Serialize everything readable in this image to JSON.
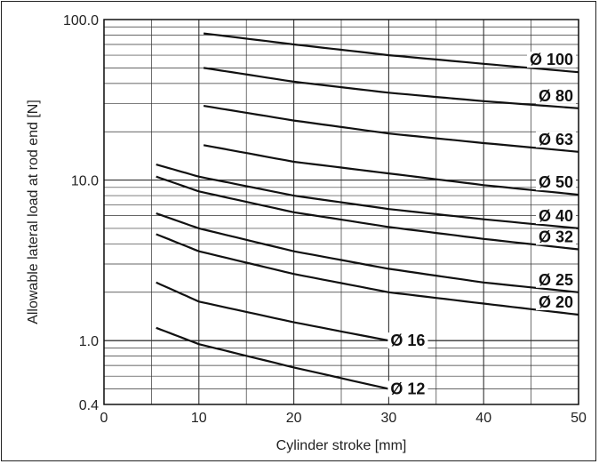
{
  "chart_data": {
    "type": "line",
    "title": "",
    "xlabel": "Cylinder stroke [mm]",
    "ylabel": "Allowable lateral load at rod end [N]",
    "x_scale": "linear",
    "y_scale": "log",
    "xlim": [
      0,
      50
    ],
    "ylim": [
      0.4,
      100
    ],
    "x_ticks": [
      0,
      10,
      20,
      30,
      40,
      50
    ],
    "x_tick_labels": [
      "0",
      "10",
      "20",
      "30",
      "40",
      "50"
    ],
    "y_ticks": [
      0.4,
      1.0,
      10.0,
      100.0
    ],
    "y_tick_labels": [
      "0.4",
      "1.0",
      "10.0",
      "100.0"
    ],
    "grid": true,
    "line_color": "#111111",
    "grid_color": "#333333",
    "series": [
      {
        "name": "Ø 100",
        "x": [
          10.5,
          20,
          30,
          40,
          50
        ],
        "y": [
          82,
          70,
          60,
          53,
          47
        ]
      },
      {
        "name": "Ø 80",
        "x": [
          10.5,
          20,
          30,
          40,
          50
        ],
        "y": [
          50,
          41,
          35,
          31,
          28
        ]
      },
      {
        "name": "Ø 63",
        "x": [
          10.5,
          20,
          30,
          40,
          50
        ],
        "y": [
          29,
          23.5,
          19.5,
          17,
          15
        ]
      },
      {
        "name": "Ø 50",
        "x": [
          10.5,
          20,
          30,
          40,
          50
        ],
        "y": [
          16.5,
          13,
          11,
          9.3,
          8.1
        ]
      },
      {
        "name": "Ø 40",
        "x": [
          5.5,
          10,
          20,
          30,
          40,
          50
        ],
        "y": [
          12.5,
          10.5,
          8.0,
          6.6,
          5.7,
          5.0
        ]
      },
      {
        "name": "Ø 32",
        "x": [
          5.5,
          10,
          20,
          30,
          40,
          50
        ],
        "y": [
          10.5,
          8.5,
          6.3,
          5.1,
          4.3,
          3.7
        ]
      },
      {
        "name": "Ø 25",
        "x": [
          5.5,
          10,
          20,
          30,
          40,
          50
        ],
        "y": [
          6.2,
          5.0,
          3.6,
          2.8,
          2.3,
          2.0
        ]
      },
      {
        "name": "Ø 20",
        "x": [
          5.5,
          10,
          20,
          30,
          40,
          50
        ],
        "y": [
          4.6,
          3.6,
          2.6,
          2.0,
          1.7,
          1.45
        ]
      },
      {
        "name": "Ø 16",
        "x": [
          5.5,
          10,
          20,
          30
        ],
        "y": [
          2.3,
          1.75,
          1.3,
          1.0
        ]
      },
      {
        "name": "Ø 12",
        "x": [
          5.5,
          10,
          20,
          30
        ],
        "y": [
          1.2,
          0.95,
          0.68,
          0.5
        ]
      }
    ]
  }
}
